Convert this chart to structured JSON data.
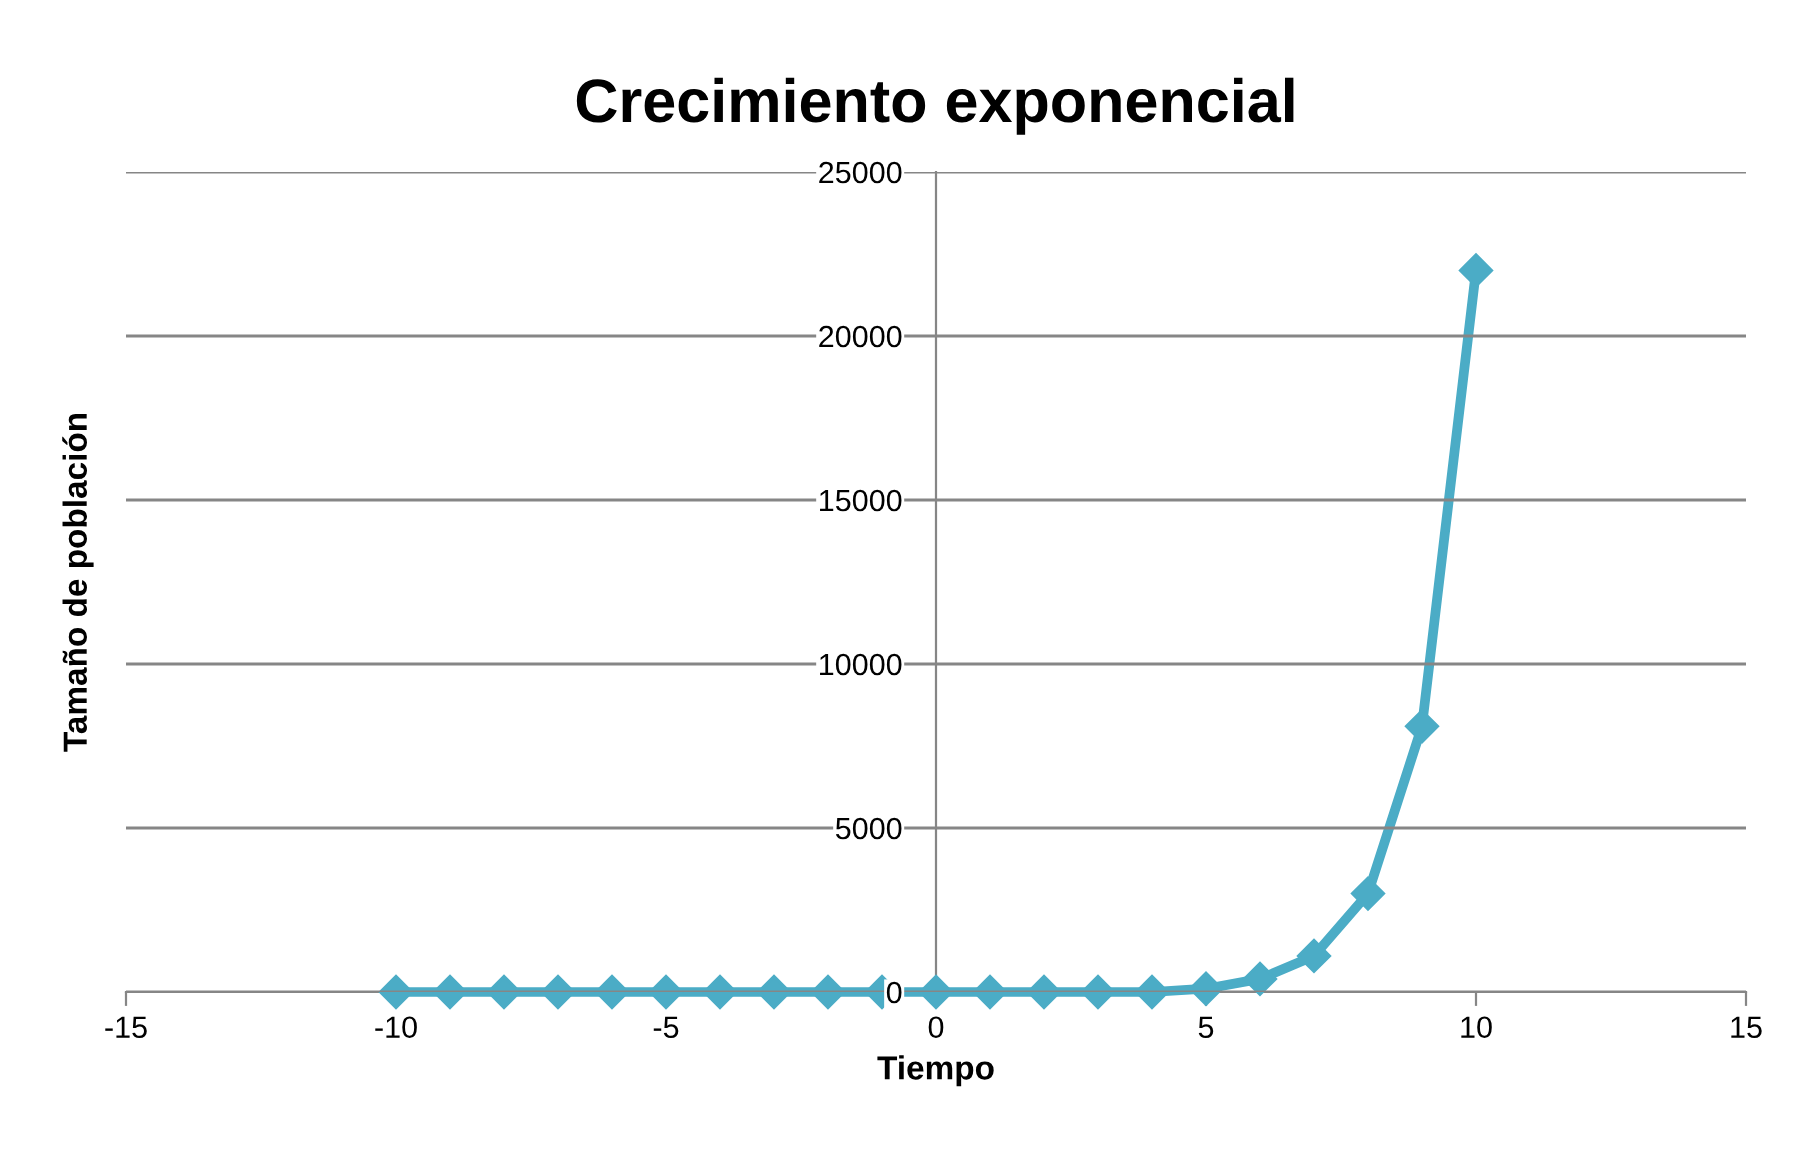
{
  "chart_data": {
    "type": "line",
    "title": "Crecimiento exponencial",
    "xlabel": "Tiempo",
    "ylabel": "Tamaño de población",
    "x": [
      -10,
      -9,
      -8,
      -7,
      -6,
      -5,
      -4,
      -3,
      -2,
      -1,
      0,
      1,
      2,
      3,
      4,
      5,
      6,
      7,
      8,
      9,
      10
    ],
    "series": [
      {
        "color": "#4bacc6",
        "values": [
          0,
          0,
          0,
          0,
          0,
          0,
          0,
          0,
          0,
          0,
          0,
          0,
          0,
          0,
          0,
          100,
          400,
          1100,
          3000,
          8100,
          22000
        ]
      }
    ],
    "xlim": [
      -15,
      15
    ],
    "xticks": [
      -15,
      -10,
      -5,
      0,
      5,
      10,
      15
    ],
    "ylim": [
      0,
      25000
    ],
    "yticks": [
      0,
      5000,
      10000,
      15000,
      20000,
      25000
    ],
    "grid": "y",
    "marker": "diamond",
    "line_style": "solid",
    "legend": false
  }
}
